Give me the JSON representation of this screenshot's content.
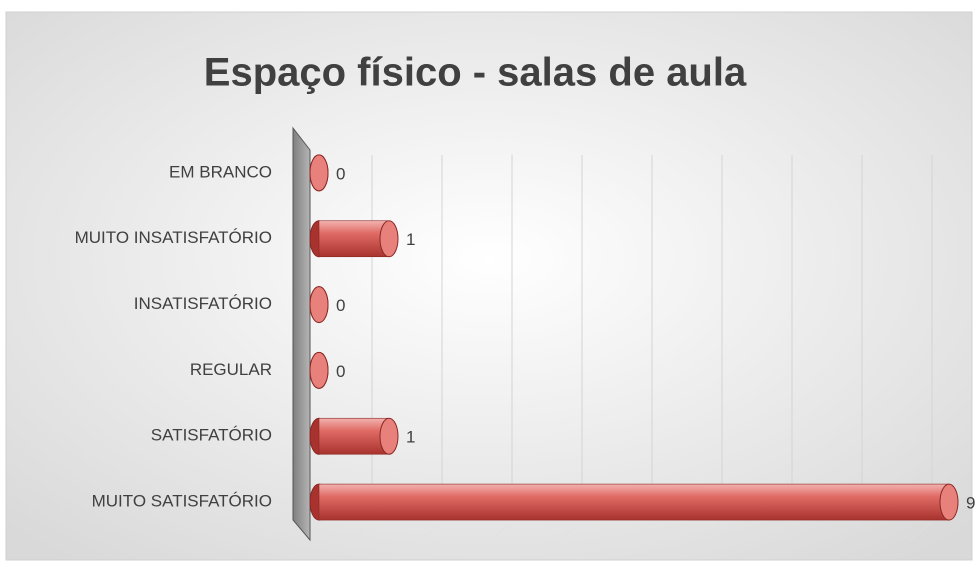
{
  "chart_data": {
    "type": "bar",
    "orientation": "horizontal",
    "title": "Espaço físico - salas de aula",
    "categories": [
      "EM BRANCO",
      "MUITO INSATISFATÓRIO",
      "INSATISFATÓRIO",
      "REGULAR",
      "SATISFATÓRIO",
      "MUITO SATISFATÓRIO"
    ],
    "values": [
      0,
      1,
      0,
      0,
      1,
      9
    ],
    "color": "#d9534f",
    "xlim": [
      0,
      9
    ],
    "xticks": [
      1,
      2,
      3,
      4,
      5,
      6,
      7,
      8,
      9
    ],
    "grid": true
  }
}
